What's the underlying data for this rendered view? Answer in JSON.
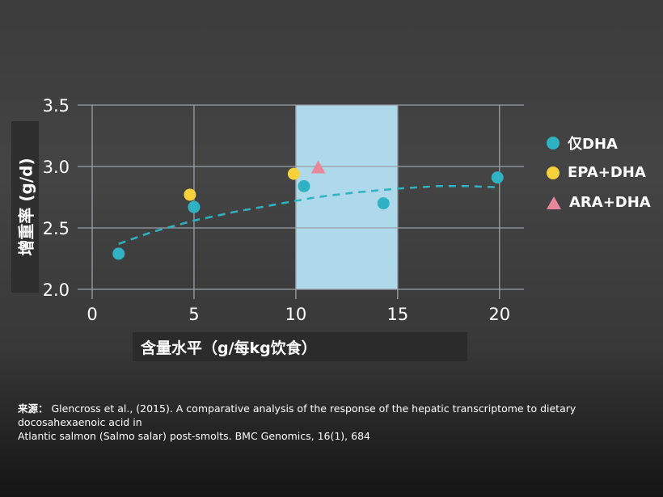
{
  "chart_data": {
    "type": "scatter",
    "xlabel": "含量水平（g/每kg饮食）",
    "ylabel": "增重率 (g/d)",
    "xlim": [
      0,
      21.2
    ],
    "ylim": [
      2.0,
      3.5
    ],
    "xticks": [
      "0",
      "5",
      "10",
      "15",
      "20"
    ],
    "yticks": [
      "2.0",
      "2.5",
      "3.0",
      "3.5"
    ],
    "grid": true,
    "highlight_band": {
      "x": [
        10,
        15
      ],
      "color": "#add9ea"
    },
    "legend_position": "right",
    "series": [
      {
        "name": "仅DHA",
        "marker": "circle",
        "color": "#2fb3c4",
        "x": [
          1.3,
          5.0,
          10.4,
          14.3,
          19.9
        ],
        "y": [
          2.29,
          2.67,
          2.84,
          2.7,
          2.91
        ]
      },
      {
        "name": "EPA+DHA",
        "marker": "circle",
        "color": "#f7d13a",
        "x": [
          4.8,
          9.9
        ],
        "y": [
          2.77,
          2.94
        ]
      },
      {
        "name": "ARA+DHA",
        "marker": "triangle",
        "color": "#e9879a",
        "x": [
          11.1
        ],
        "y": [
          2.99
        ]
      }
    ],
    "trendline": {
      "style": "dashed",
      "color": "#2fb3c4",
      "x": [
        1.3,
        3,
        5,
        7,
        9,
        11,
        13,
        15,
        17,
        18.5,
        19.9
      ],
      "y": [
        2.37,
        2.47,
        2.56,
        2.63,
        2.69,
        2.75,
        2.79,
        2.82,
        2.84,
        2.84,
        2.83
      ]
    }
  },
  "source": {
    "label": "来源：",
    "text": "Glencross et al., (2015). A comparative analysis of the response of the hepatic transcriptome to dietary docosahexaenoic acid in",
    "text2": "Atlantic salmon (Salmo salar) post-smolts. BMC Genomics, 16(1), 684"
  }
}
